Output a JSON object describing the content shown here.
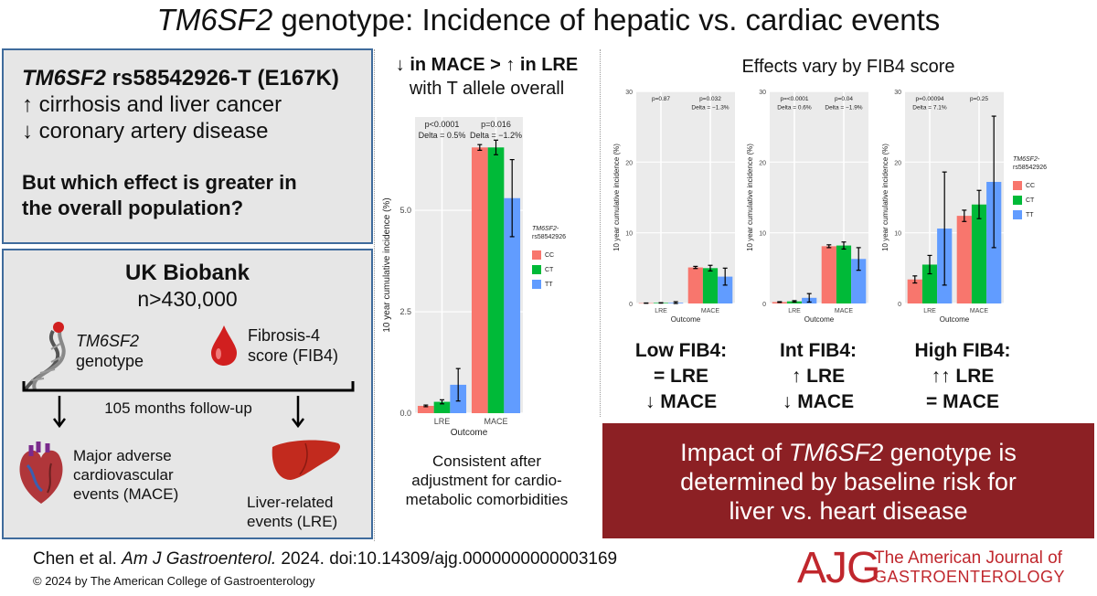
{
  "title": {
    "gene": "TM6SF2",
    "rest": " genotype: Incidence of hepatic vs. cardiac events"
  },
  "box1": {
    "line1_gene": "TM6SF2",
    "line1_rest": " rs58542926-T (E167K)",
    "line2": "↑ cirrhosis and liver cancer",
    "line3": "↓ coronary artery disease",
    "question1": "But which effect is greater in",
    "question2": "the overall population?"
  },
  "box2": {
    "heading": "UK Biobank",
    "n": "n>430,000",
    "genotype_gene": "TM6SF2",
    "genotype_word": "genotype",
    "fib4_line1": "Fibrosis-4",
    "fib4_line2": "score (FIB4)",
    "followup": "105 months follow-up",
    "mace_lines": [
      "Major adverse",
      "cardiovascular",
      "events (MACE)"
    ],
    "lre_lines": [
      "Liver-related",
      "events (LRE)"
    ]
  },
  "middle": {
    "heading1": "↓ in MACE > ↑ in LRE",
    "heading2": "with T allele overall",
    "note": [
      "Consistent after",
      "adjustment for cardio-",
      "metabolic comorbidities"
    ]
  },
  "right": {
    "heading": "Effects vary by FIB4 score"
  },
  "summaries": [
    {
      "l1": "Low FIB4:",
      "l2": "= LRE",
      "l3": "↓ MACE"
    },
    {
      "l1": "Int FIB4:",
      "l2": "↑ LRE",
      "l3": "↓ MACE"
    },
    {
      "l1": "High FIB4:",
      "l2": "↑↑ LRE",
      "l3": "= MACE"
    }
  ],
  "impact": {
    "pre": "Impact of ",
    "gene": "TM6SF2",
    "post": " genotype is",
    "line2": "determined by baseline risk for",
    "line3": "liver vs. heart disease"
  },
  "citation": {
    "pre": "Chen et al. ",
    "journal": "Am J Gastroenterol.",
    "post": " 2024. doi:10.14309/ajg.0000000000003169"
  },
  "copyright": "© 2024 by The American College of Gastroenterology",
  "logo": {
    "mark": "AJG",
    "line1": "The American Journal of",
    "line2": "GASTROENTEROLOGY"
  },
  "colors": {
    "CC": "#f8766d",
    "CT": "#00ba38",
    "TT": "#619cff",
    "impact_bg": "#8c2024",
    "box_border": "#3f6b9c",
    "logo": "#c0272d"
  },
  "chart_data": [
    {
      "type": "bar",
      "panel": "overall",
      "categories": [
        "LRE",
        "MACE"
      ],
      "xlabel": "Outcome",
      "ylabel": "10 year cumulative incidence (%)",
      "ylim": [
        0,
        7.3
      ],
      "yticks": [
        0.0,
        2.5,
        5.0
      ],
      "legend_title": "TM6SF2-\nrs58542926",
      "series": [
        {
          "name": "CC",
          "values": [
            0.18,
            6.55
          ],
          "err": [
            0.02,
            0.07
          ]
        },
        {
          "name": "CT",
          "values": [
            0.28,
            6.55
          ],
          "err": [
            0.05,
            0.18
          ]
        },
        {
          "name": "TT",
          "values": [
            0.7,
            5.3
          ],
          "err": [
            0.4,
            0.95
          ]
        }
      ],
      "annotations": [
        {
          "category": "LRE",
          "p": "p<0.0001",
          "delta": "Delta = 0.5%"
        },
        {
          "category": "MACE",
          "p": "p=0.016",
          "delta": "Delta = −1.2%"
        }
      ]
    },
    {
      "type": "bar",
      "panel": "Low FIB4",
      "categories": [
        "LRE",
        "MACE"
      ],
      "xlabel": "Outcome",
      "ylabel": "10 year cumulative incidence (%)",
      "ylim": [
        0,
        30
      ],
      "yticks": [
        0,
        10,
        20,
        30
      ],
      "series": [
        {
          "name": "CC",
          "values": [
            0.05,
            5.1
          ],
          "err": [
            0.02,
            0.15
          ]
        },
        {
          "name": "CT",
          "values": [
            0.08,
            5.0
          ],
          "err": [
            0.03,
            0.4
          ]
        },
        {
          "name": "TT",
          "values": [
            0.1,
            3.8
          ],
          "err": [
            0.15,
            1.2
          ]
        }
      ],
      "annotations": [
        {
          "category": "LRE",
          "p": "p=0.87",
          "delta": ""
        },
        {
          "category": "MACE",
          "p": "p=0.032",
          "delta": "Delta = −1.3%"
        }
      ]
    },
    {
      "type": "bar",
      "panel": "Int FIB4",
      "categories": [
        "LRE",
        "MACE"
      ],
      "xlabel": "Outcome",
      "ylabel": "10 year cumulative incidence (%)",
      "ylim": [
        0,
        30
      ],
      "yticks": [
        0,
        10,
        20,
        30
      ],
      "series": [
        {
          "name": "CC",
          "values": [
            0.2,
            8.1
          ],
          "err": [
            0.05,
            0.2
          ]
        },
        {
          "name": "CT",
          "values": [
            0.3,
            8.2
          ],
          "err": [
            0.1,
            0.5
          ]
        },
        {
          "name": "TT",
          "values": [
            0.8,
            6.3
          ],
          "err": [
            0.6,
            1.6
          ]
        }
      ],
      "annotations": [
        {
          "category": "LRE",
          "p": "p=<0.0001",
          "delta": "Delta = 0.6%"
        },
        {
          "category": "MACE",
          "p": "p=0.04",
          "delta": "Delta = −1.9%"
        }
      ]
    },
    {
      "type": "bar",
      "panel": "High FIB4",
      "categories": [
        "LRE",
        "MACE"
      ],
      "xlabel": "Outcome",
      "ylabel": "10 year cumulative incidence (%)",
      "ylim": [
        0,
        30
      ],
      "yticks": [
        0,
        10,
        20,
        30
      ],
      "legend_title": "TM6SF2-\nrs58542926",
      "series": [
        {
          "name": "CC",
          "values": [
            3.4,
            12.4
          ],
          "err": [
            0.5,
            0.8
          ]
        },
        {
          "name": "CT",
          "values": [
            5.5,
            14.0
          ],
          "err": [
            1.3,
            2.0
          ]
        },
        {
          "name": "TT",
          "values": [
            10.6,
            17.2
          ],
          "err": [
            8.0,
            9.3
          ]
        }
      ],
      "annotations": [
        {
          "category": "LRE",
          "p": "p=0.00094",
          "delta": "Delta = 7.1%"
        },
        {
          "category": "MACE",
          "p": "p=0.25",
          "delta": ""
        }
      ]
    }
  ]
}
